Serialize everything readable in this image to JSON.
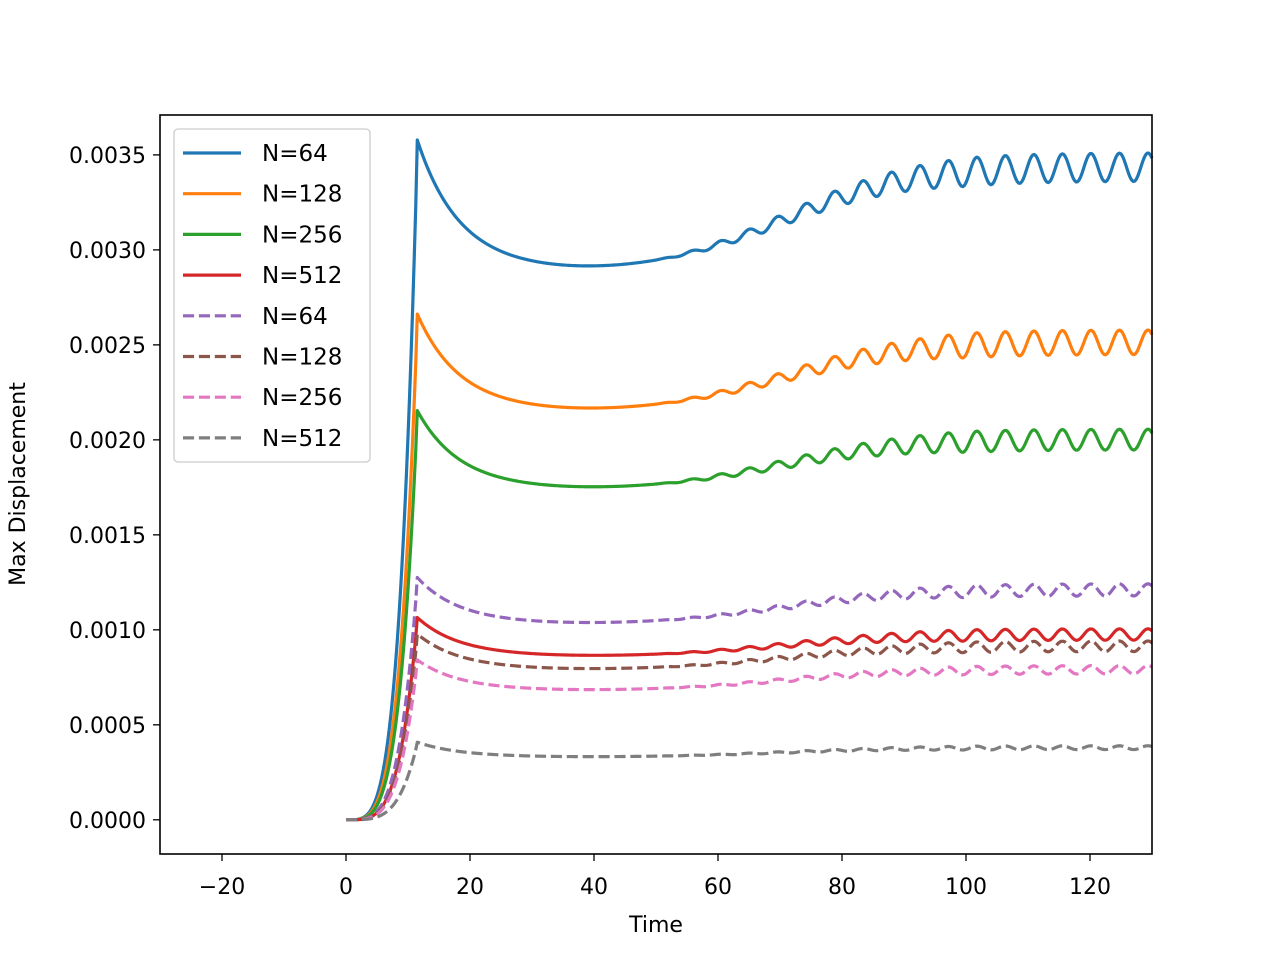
{
  "chart_data": {
    "type": "line",
    "xlabel": "Time",
    "ylabel": "Max Displacement",
    "xlim": [
      -30,
      130
    ],
    "ylim": [
      -0.00018,
      0.00371
    ],
    "xticks": [
      -20,
      0,
      20,
      40,
      60,
      80,
      100,
      120
    ],
    "xtick_labels": [
      "−20",
      "0",
      "20",
      "40",
      "60",
      "80",
      "100",
      "120"
    ],
    "yticks": [
      0.0,
      0.0005,
      0.001,
      0.0015,
      0.002,
      0.0025,
      0.003,
      0.0035
    ],
    "ytick_labels": [
      "0.0000",
      "0.0005",
      "0.0010",
      "0.0015",
      "0.0020",
      "0.0025",
      "0.0030",
      "0.0035"
    ],
    "grid": false,
    "legend_position": "top-left",
    "series": [
      {
        "name": "N=64",
        "color": "#1f77b4",
        "dash": "solid",
        "plateau": 0.00289,
        "growth": 0.00046,
        "osc": 7.5e-05
      },
      {
        "name": "N=128",
        "color": "#ff7f0e",
        "dash": "solid",
        "plateau": 0.00215,
        "growth": 0.0003,
        "osc": 6.5e-05
      },
      {
        "name": "N=256",
        "color": "#2ca02c",
        "dash": "solid",
        "plateau": 0.00174,
        "growth": 0.00021,
        "osc": 5.5e-05
      },
      {
        "name": "N=512",
        "color": "#d62728",
        "dash": "solid",
        "plateau": 0.00086,
        "growth": 9e-05,
        "osc": 3e-05
      },
      {
        "name": "N=64",
        "color": "#9467bd",
        "dash": "dashed",
        "plateau": 0.00103,
        "growth": 0.00015,
        "osc": 3.2e-05
      },
      {
        "name": "N=128",
        "color": "#8c564b",
        "dash": "dashed",
        "plateau": 0.00079,
        "growth": 0.0001,
        "osc": 2.8e-05
      },
      {
        "name": "N=256",
        "color": "#e377c2",
        "dash": "dashed",
        "plateau": 0.00068,
        "growth": 9e-05,
        "osc": 2.2e-05
      },
      {
        "name": "N=512",
        "color": "#7f7f7f",
        "dash": "dashed",
        "plateau": 0.00033,
        "growth": 4e-05,
        "osc": 1e-05
      }
    ]
  }
}
